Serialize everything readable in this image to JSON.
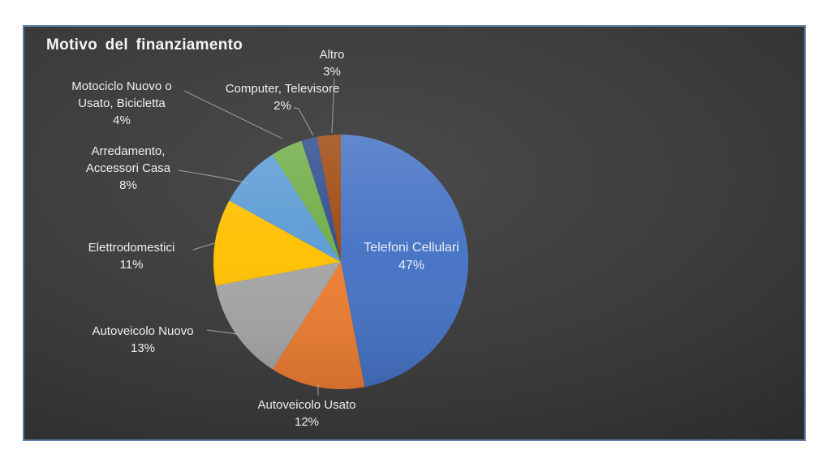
{
  "slide": {
    "title": "Motivo del finanziamento"
  },
  "chart_data": {
    "type": "pie",
    "title": "Motivo del finanziamento",
    "unit": "percent",
    "direction": "clockwise",
    "start_angle_deg": 0,
    "legend": "none",
    "data_labels": "category name and percentage outside with leader lines; largest slice labeled inside",
    "slices": [
      {
        "label": "Telefoni Cellulari",
        "value": 47,
        "pct": "47%",
        "color": "#4472C4"
      },
      {
        "label": "Autoveicolo Usato",
        "value": 12,
        "pct": "12%",
        "color": "#ED7D31"
      },
      {
        "label": "Autoveicolo Nuovo",
        "value": 13,
        "pct": "13%",
        "color": "#A5A5A5"
      },
      {
        "label": "Elettrodomestici",
        "value": 11,
        "pct": "11%",
        "color": "#FFC000"
      },
      {
        "label": "Arredamento, Accessori Casa",
        "value": 8,
        "pct": "8%",
        "color": "#5B9BD5"
      },
      {
        "label": "Motociclo Nuovo o Usato, Bicicletta",
        "value": 4,
        "pct": "4%",
        "color": "#70AD47"
      },
      {
        "label": "Computer, Televisore",
        "value": 2,
        "pct": "2%",
        "color": "#2E4D8E"
      },
      {
        "label": "Altro",
        "value": 3,
        "pct": "3%",
        "color": "#9E480E"
      }
    ]
  },
  "labels": {
    "telefoni": {
      "line1": "Telefoni Cellulari",
      "line2": "47%"
    },
    "usato": {
      "line1": "Autoveicolo Usato",
      "line2": "12%"
    },
    "nuovo": {
      "line1": "Autoveicolo Nuovo",
      "line2": "13%"
    },
    "elettro": {
      "line1": "Elettrodomestici",
      "line2": "11%"
    },
    "arredamento": {
      "line1": "Arredamento,",
      "line2": "Accessori Casa",
      "line3": "8%"
    },
    "motociclo": {
      "line1": "Motociclo Nuovo o",
      "line2": "Usato, Bicicletta",
      "line3": "4%"
    },
    "computer": {
      "line1": "Computer, Televisore",
      "line2": "2%"
    },
    "altro": {
      "line1": "Altro",
      "line2": "3%"
    }
  },
  "colors": {
    "slide_background_center": "#4a4a4a",
    "slide_background_edge": "#232323",
    "slide_border": "#5f7da5",
    "label_text": "#efefef",
    "leader_line": "#c9c9c9",
    "page_background": "#ffffff"
  }
}
